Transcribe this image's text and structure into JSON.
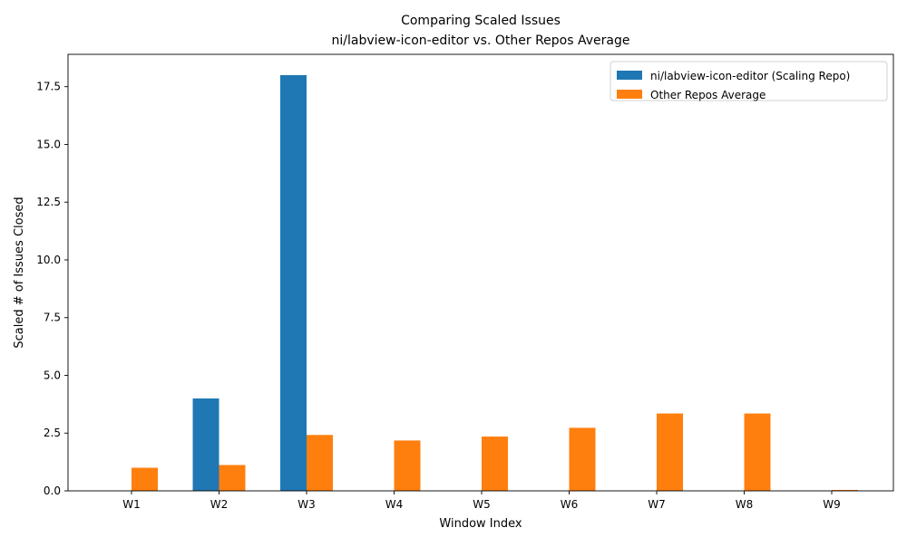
{
  "chart_data": {
    "type": "bar",
    "title": "Comparing Scaled Issues",
    "subtitle": "ni/labview-icon-editor vs. Other Repos Average",
    "xlabel": "Window Index",
    "ylabel": "Scaled # of Issues Closed",
    "categories": [
      "W1",
      "W2",
      "W3",
      "W4",
      "W5",
      "W6",
      "W7",
      "W8",
      "W9"
    ],
    "ylim": [
      0,
      18.9
    ],
    "yticks": [
      0.0,
      2.5,
      5.0,
      7.5,
      10.0,
      12.5,
      15.0,
      17.5
    ],
    "ytick_labels": [
      "0.0",
      "2.5",
      "5.0",
      "7.5",
      "10.0",
      "12.5",
      "15.0",
      "17.5"
    ],
    "grid": false,
    "legend_position": "top-right",
    "series": [
      {
        "name": "ni/labview-icon-editor (Scaling Repo)",
        "color": "#1f77b4",
        "values": [
          0,
          4,
          18,
          0,
          0,
          0,
          0,
          0,
          0
        ]
      },
      {
        "name": "Other Repos Average",
        "color": "#ff7f0e",
        "values": [
          1.0,
          1.12,
          2.42,
          2.18,
          2.35,
          2.73,
          3.35,
          3.35,
          0.04
        ]
      }
    ]
  }
}
